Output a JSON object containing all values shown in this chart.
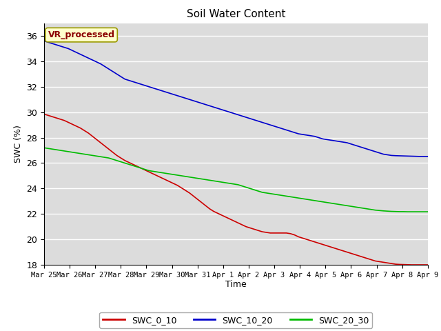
{
  "title": "Soil Water Content",
  "xlabel": "Time",
  "ylabel": "SWC (%)",
  "ylim": [
    18,
    37
  ],
  "yticks": [
    18,
    20,
    22,
    24,
    26,
    28,
    30,
    32,
    34,
    36
  ],
  "bg_color": "#dcdcdc",
  "annotation_text": "VR_processed",
  "annotation_color": "#8b0000",
  "annotation_bg": "#ffffcc",
  "legend_labels": [
    "SWC_0_10",
    "SWC_10_20",
    "SWC_20_30"
  ],
  "line_colors": [
    "#cc0000",
    "#0000cc",
    "#00bb00"
  ],
  "x_labels": [
    "Mar 25",
    "Mar 26",
    "Mar 27",
    "Mar 28",
    "Mar 29",
    "Mar 30",
    "Mar 31",
    "Apr 1",
    "Apr 2",
    "Apr 3",
    "Apr 4",
    "Apr 5",
    "Apr 6",
    "Apr 7",
    "Apr 8",
    "Apr 9"
  ],
  "SWC_0_10_pts": [
    29.85,
    29.75,
    29.65,
    29.55,
    29.45,
    29.35,
    29.2,
    29.05,
    28.9,
    28.75,
    28.55,
    28.35,
    28.1,
    27.85,
    27.6,
    27.35,
    27.1,
    26.85,
    26.6,
    26.4,
    26.2,
    26.05,
    25.9,
    25.75,
    25.6,
    25.45,
    25.3,
    25.15,
    25.0,
    24.85,
    24.7,
    24.55,
    24.4,
    24.25,
    24.05,
    23.85,
    23.65,
    23.4,
    23.15,
    22.9,
    22.65,
    22.4,
    22.2,
    22.05,
    21.9,
    21.75,
    21.6,
    21.45,
    21.3,
    21.15,
    21.0,
    20.9,
    20.8,
    20.7,
    20.6,
    20.55,
    20.5,
    20.5,
    20.5,
    20.5,
    20.5,
    20.45,
    20.35,
    20.2,
    20.1,
    20.0,
    19.9,
    19.8,
    19.7,
    19.6,
    19.5,
    19.4,
    19.3,
    19.2,
    19.1,
    19.0,
    18.9,
    18.8,
    18.7,
    18.6,
    18.5,
    18.4,
    18.3,
    18.25,
    18.2,
    18.15,
    18.1,
    18.05,
    18.03,
    18.02,
    18.01,
    18.0,
    18.0,
    18.0,
    18.0,
    18.0
  ],
  "SWC_10_20_pts": [
    35.6,
    35.5,
    35.4,
    35.3,
    35.2,
    35.1,
    35.0,
    34.85,
    34.7,
    34.55,
    34.4,
    34.25,
    34.1,
    33.95,
    33.8,
    33.6,
    33.4,
    33.2,
    33.0,
    32.8,
    32.6,
    32.5,
    32.4,
    32.3,
    32.2,
    32.1,
    32.0,
    31.9,
    31.8,
    31.7,
    31.6,
    31.5,
    31.4,
    31.3,
    31.2,
    31.1,
    31.0,
    30.9,
    30.8,
    30.7,
    30.6,
    30.5,
    30.4,
    30.3,
    30.2,
    30.1,
    30.0,
    29.9,
    29.8,
    29.7,
    29.6,
    29.5,
    29.4,
    29.3,
    29.2,
    29.1,
    29.0,
    28.9,
    28.8,
    28.7,
    28.6,
    28.5,
    28.4,
    28.3,
    28.25,
    28.2,
    28.15,
    28.1,
    28.0,
    27.9,
    27.85,
    27.8,
    27.75,
    27.7,
    27.65,
    27.6,
    27.5,
    27.4,
    27.3,
    27.2,
    27.1,
    27.0,
    26.9,
    26.8,
    26.7,
    26.65,
    26.6,
    26.58,
    26.57,
    26.56,
    26.55,
    26.54,
    26.53,
    26.52,
    26.52,
    26.52
  ],
  "SWC_20_30_pts": [
    27.2,
    27.15,
    27.1,
    27.05,
    27.0,
    26.95,
    26.9,
    26.85,
    26.8,
    26.75,
    26.7,
    26.65,
    26.6,
    26.55,
    26.5,
    26.45,
    26.4,
    26.3,
    26.2,
    26.1,
    26.0,
    25.9,
    25.8,
    25.7,
    25.6,
    25.5,
    25.4,
    25.35,
    25.3,
    25.25,
    25.2,
    25.15,
    25.1,
    25.05,
    25.0,
    24.95,
    24.9,
    24.85,
    24.8,
    24.75,
    24.7,
    24.65,
    24.6,
    24.55,
    24.5,
    24.45,
    24.4,
    24.35,
    24.3,
    24.2,
    24.1,
    24.0,
    23.9,
    23.8,
    23.7,
    23.65,
    23.6,
    23.55,
    23.5,
    23.45,
    23.4,
    23.35,
    23.3,
    23.25,
    23.2,
    23.15,
    23.1,
    23.05,
    23.0,
    22.95,
    22.9,
    22.85,
    22.8,
    22.75,
    22.7,
    22.65,
    22.6,
    22.55,
    22.5,
    22.45,
    22.4,
    22.35,
    22.3,
    22.27,
    22.24,
    22.22,
    22.2,
    22.19,
    22.18,
    22.18,
    22.17,
    22.17,
    22.17,
    22.17,
    22.17,
    22.17
  ]
}
